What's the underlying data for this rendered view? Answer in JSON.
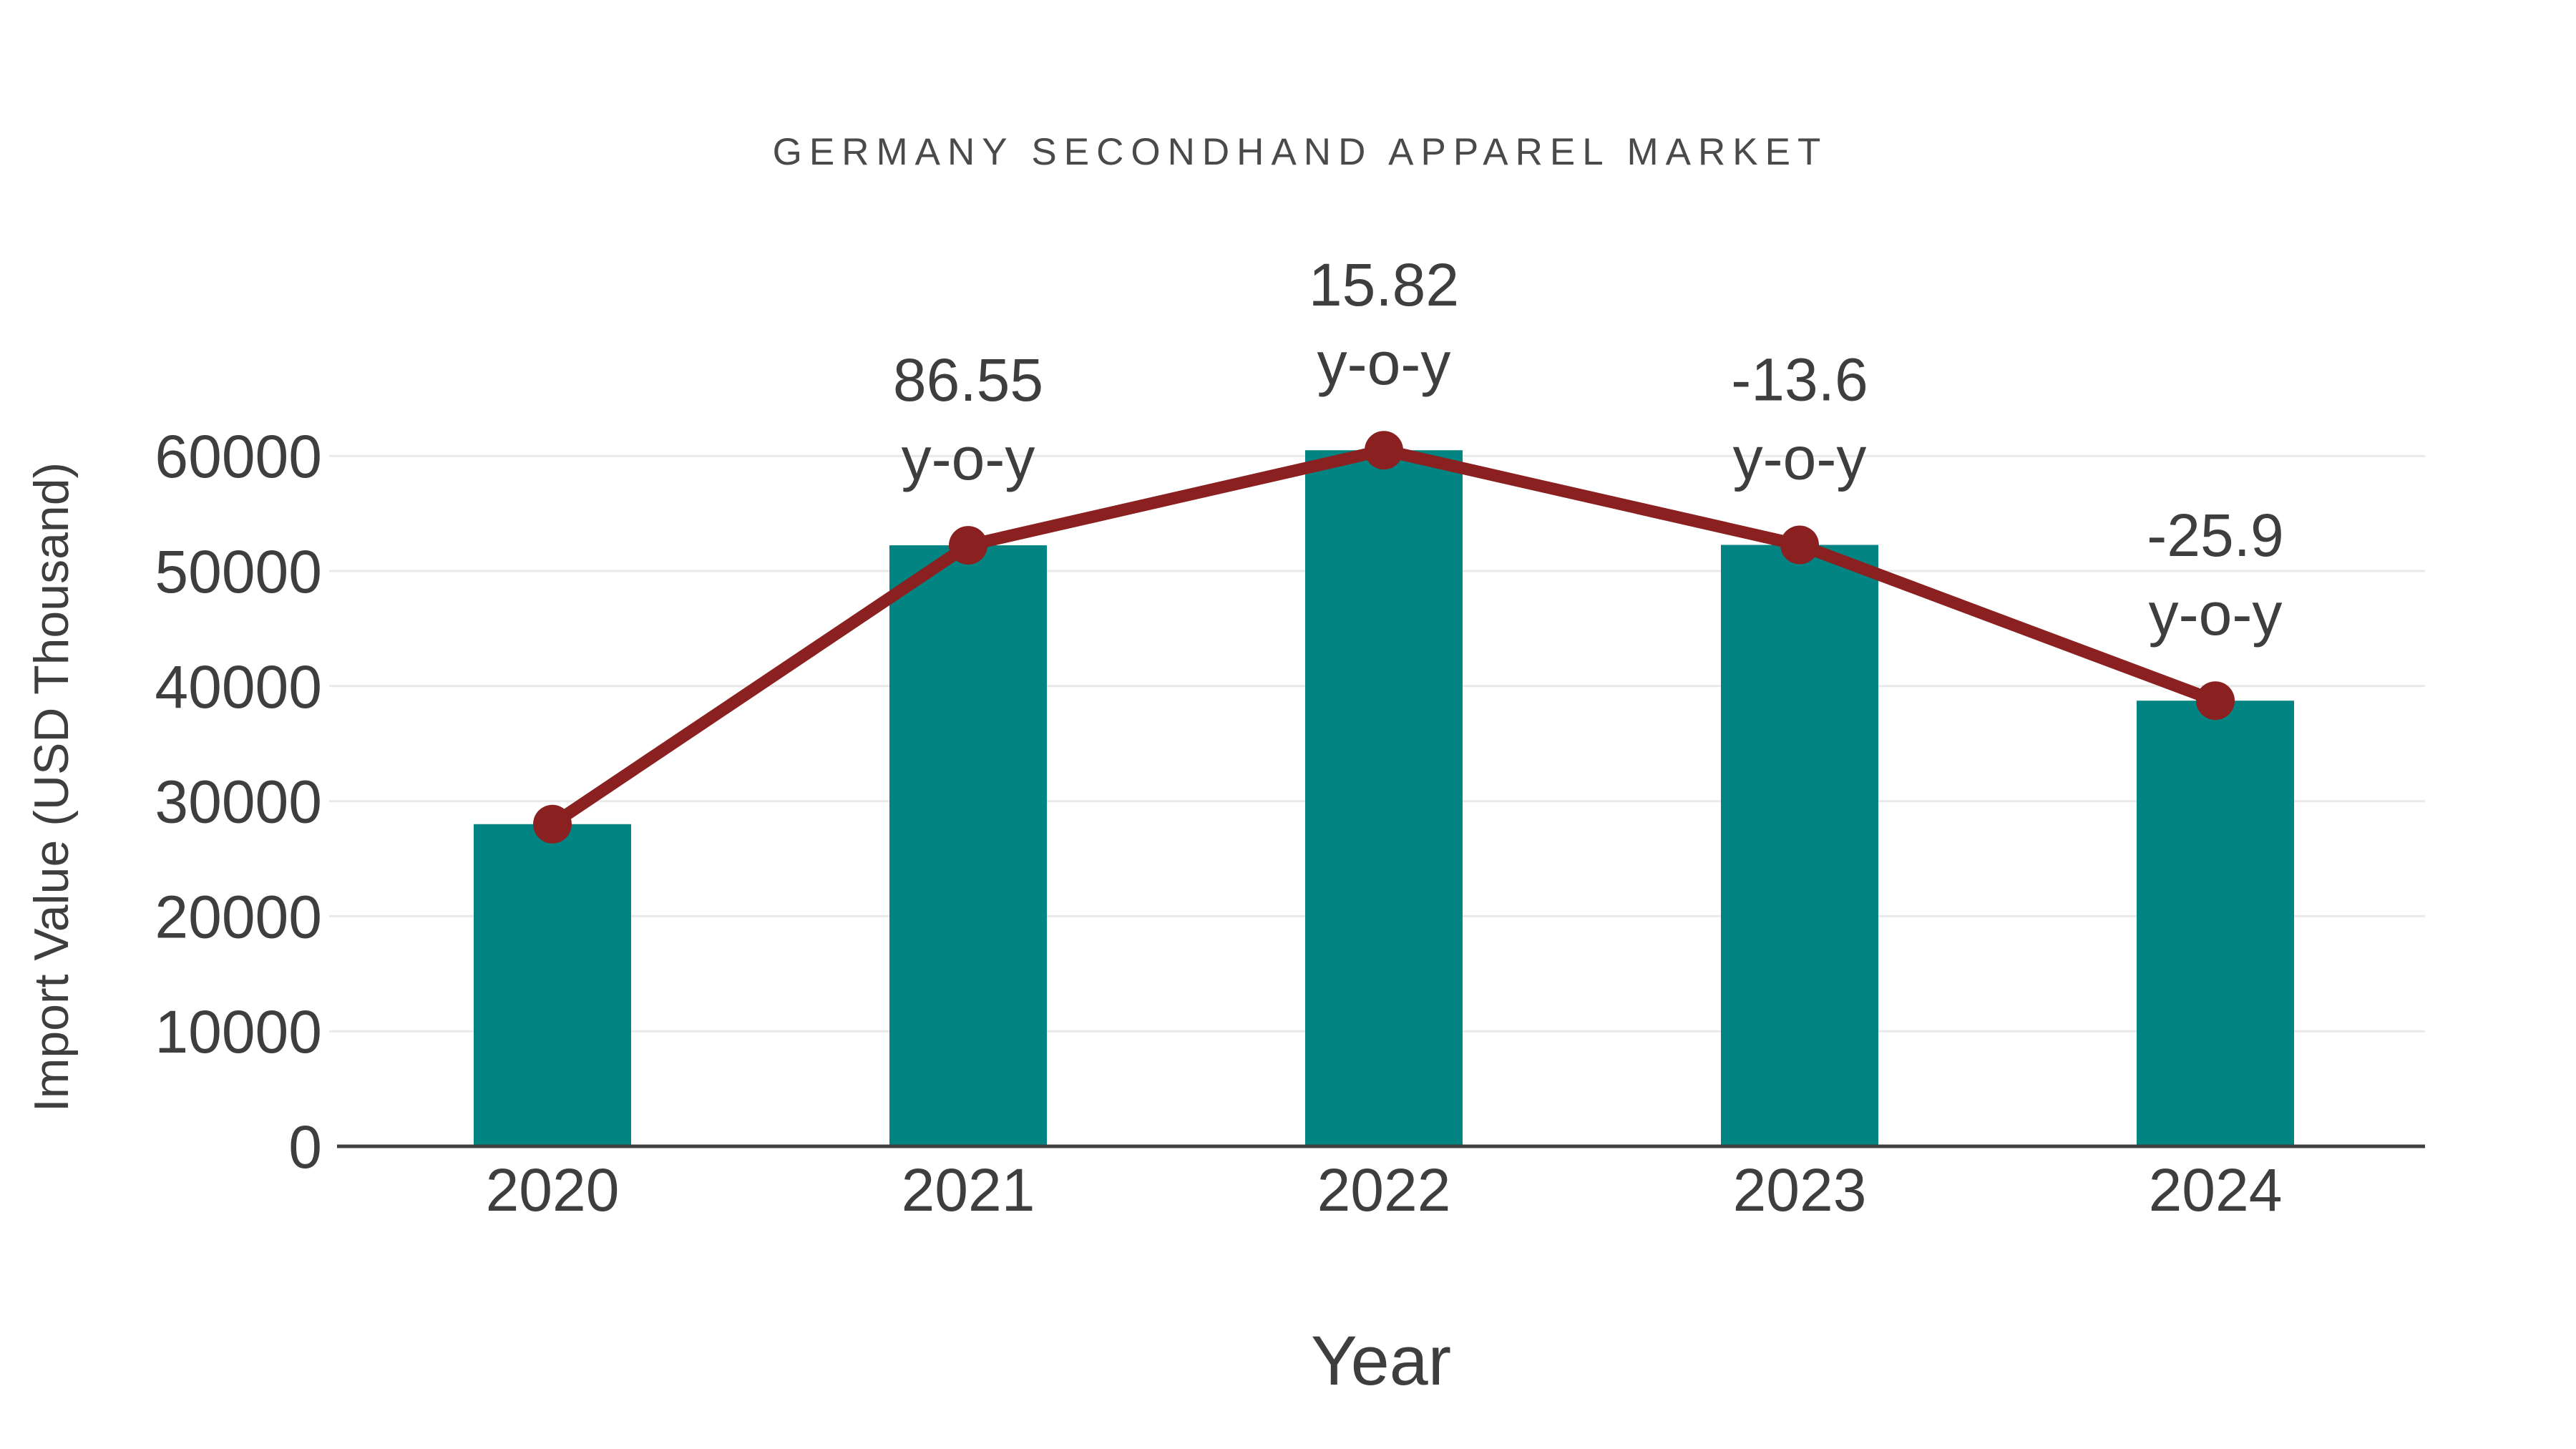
{
  "title": "GERMANY SECONDHAND APPAREL MARKET",
  "chart_data": {
    "type": "bar",
    "categories": [
      "2020",
      "2021",
      "2022",
      "2023",
      "2024"
    ],
    "series": [
      {
        "name": "import-value-bars",
        "type": "bar",
        "values": [
          28000,
          52234,
          60497,
          52269,
          38731
        ],
        "color": "#028482"
      },
      {
        "name": "import-value-line",
        "type": "line",
        "values": [
          28000,
          52234,
          60497,
          52269,
          38731
        ],
        "color": "#8B2020"
      }
    ],
    "annotations": [
      {
        "category_index": 1,
        "lines": [
          "86.55",
          "y-o-y"
        ]
      },
      {
        "category_index": 2,
        "lines": [
          "15.82",
          "y-o-y"
        ]
      },
      {
        "category_index": 3,
        "lines": [
          "-13.6",
          "y-o-y"
        ]
      },
      {
        "category_index": 4,
        "lines": [
          "-25.9",
          "y-o-y"
        ]
      }
    ],
    "xlabel": "Year",
    "ylabel": "Import Value (USD Thousand)",
    "yticks": [
      0,
      10000,
      20000,
      30000,
      40000,
      50000,
      60000
    ],
    "ylim": [
      0,
      65000
    ],
    "grid": true,
    "legend_position": "none",
    "colors": {
      "bar": "#028482",
      "line": "#8B2020",
      "marker": "#8B2020",
      "grid": "#e9e9e9",
      "axis": "#404040",
      "text": "#3e3e3e"
    }
  }
}
